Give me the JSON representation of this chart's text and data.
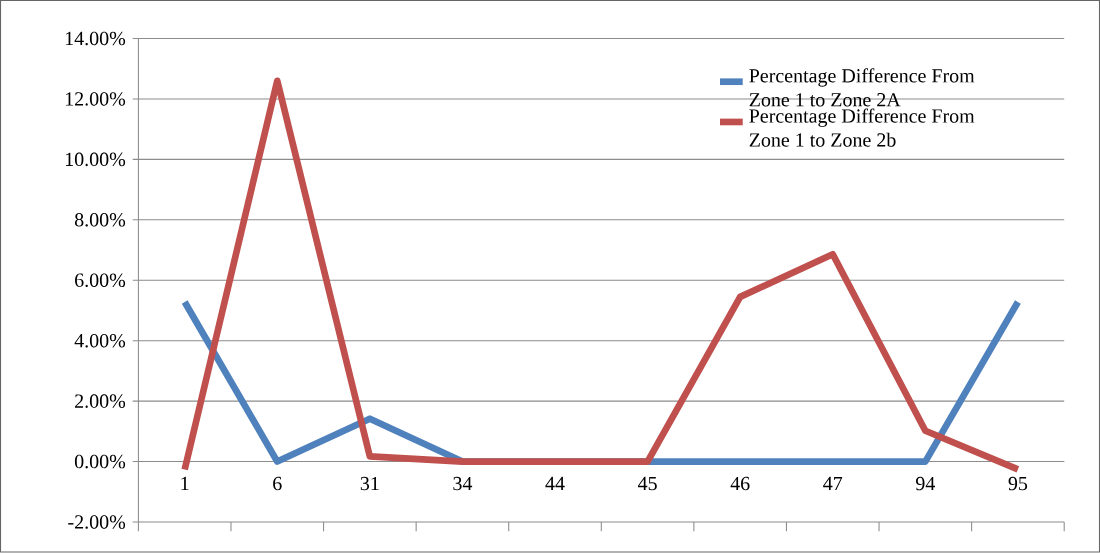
{
  "chart_data": {
    "type": "line",
    "categories": [
      "1",
      "6",
      "31",
      "34",
      "44",
      "45",
      "46",
      "47",
      "94",
      "95"
    ],
    "series": [
      {
        "name": "Percentage Difference From Zone 1 to Zone 2A",
        "color": "#4f81bd",
        "values": [
          5.28,
          0,
          1.42,
          0,
          0,
          0,
          0,
          0,
          0,
          5.28
        ]
      },
      {
        "name": "Percentage Difference From Zone 1 to Zone 2b",
        "color": "#c0504d",
        "values": [
          -0.26,
          12.6,
          0.17,
          0,
          0,
          0,
          5.45,
          6.86,
          1.02,
          -0.26
        ]
      }
    ],
    "ylim": [
      -2,
      14
    ],
    "yticks": [
      {
        "value": -2,
        "label": "-2.00%"
      },
      {
        "value": 0,
        "label": "0.00%"
      },
      {
        "value": 2,
        "label": "2.00%"
      },
      {
        "value": 4,
        "label": "4.00%"
      },
      {
        "value": 6,
        "label": "6.00%"
      },
      {
        "value": 8,
        "label": "8.00%"
      },
      {
        "value": 10,
        "label": "10.00%"
      },
      {
        "value": 12,
        "label": "12.00%"
      },
      {
        "value": 14,
        "label": "14.00%"
      }
    ],
    "grid": "y",
    "legend": "top right"
  }
}
